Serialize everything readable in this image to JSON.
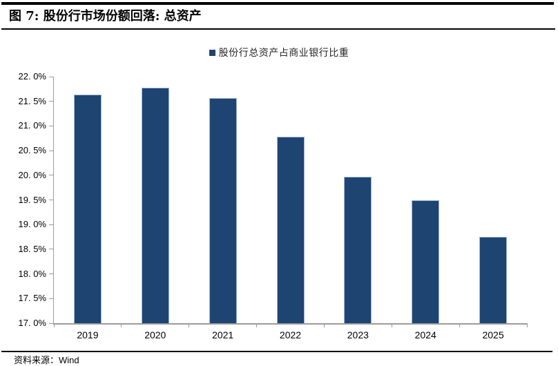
{
  "header": {
    "title": "图 7: 股份行市场份额回落: 总资产"
  },
  "legend": {
    "label": "股份行总资产占商业银行比重",
    "marker_color": "#1E4472"
  },
  "chart_data": {
    "type": "bar",
    "title": "图 7: 股份行市场份额回落: 总资产",
    "categories": [
      "2019",
      "2020",
      "2021",
      "2022",
      "2023",
      "2024",
      "2025"
    ],
    "series": [
      {
        "name": "股份行总资产占商业银行比重",
        "values": [
          21.63,
          21.78,
          21.56,
          20.78,
          19.97,
          19.5,
          18.75
        ]
      }
    ],
    "unit": "percent",
    "xlabel": "",
    "ylabel": "",
    "ylim": [
      17.0,
      22.0
    ],
    "ytick_step": 0.5,
    "ytick_labels": [
      "22. 0%",
      "21. 5%",
      "21. 0%",
      "20. 5%",
      "20. 0%",
      "19. 5%",
      "19. 0%",
      "18. 5%",
      "18. 0%",
      "17. 5%",
      "17. 0%"
    ],
    "grid": false,
    "legend_position": "top-center",
    "bar_color": "#1E4472",
    "bar_border_color": "#A0B5D0",
    "axis_color": "#9A9A9A"
  },
  "footer": {
    "source_prefix": "资料来源：",
    "source_name": "Wind"
  }
}
